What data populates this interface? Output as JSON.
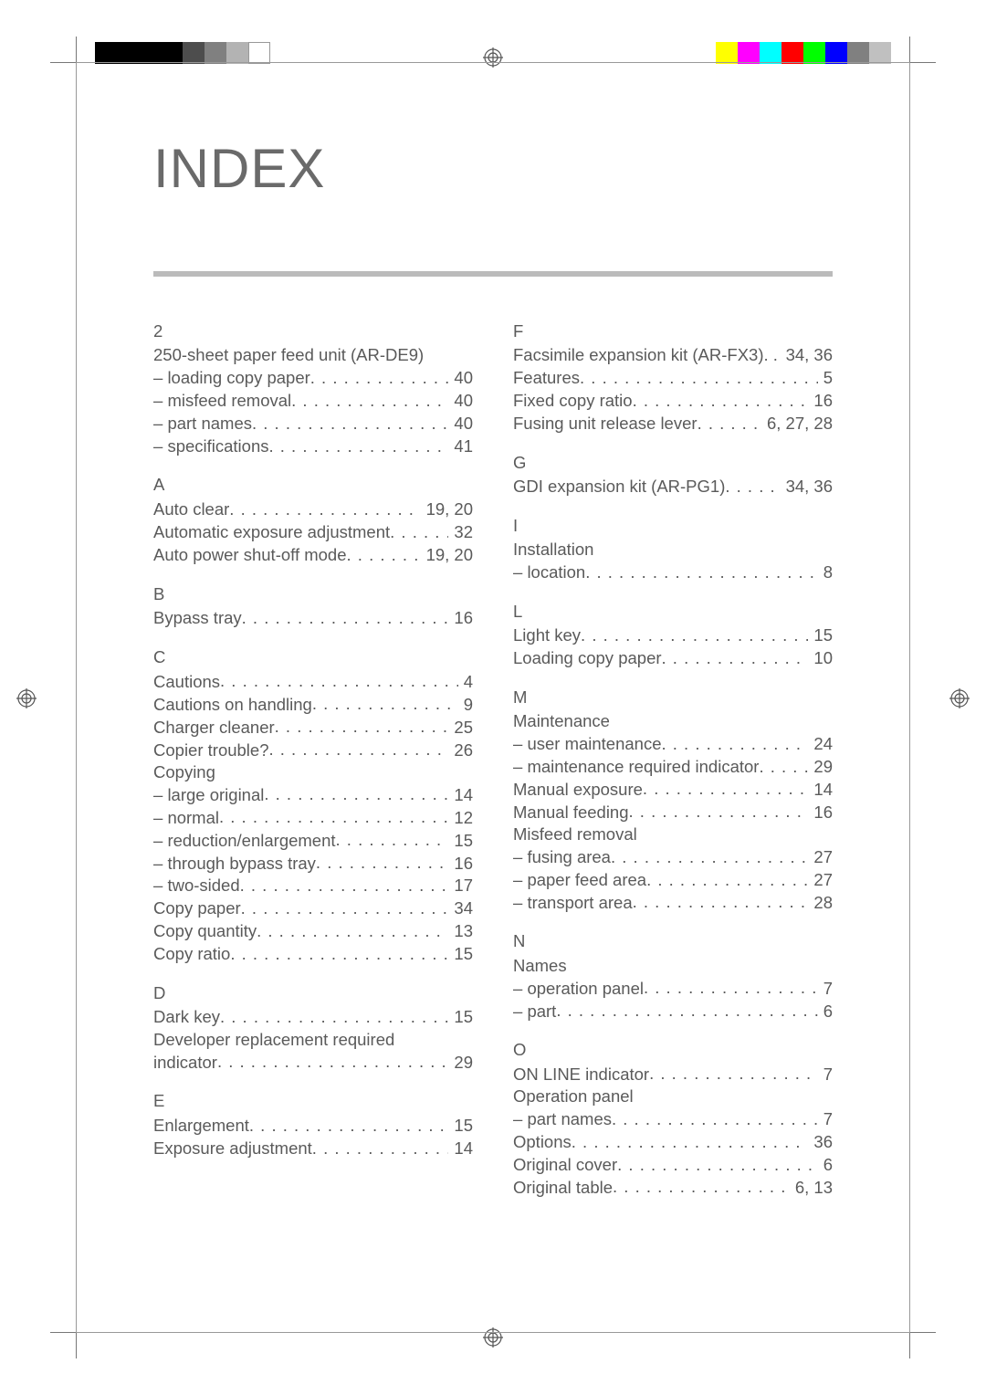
{
  "title": "INDEX",
  "printmarks": {
    "color_bar_left": [
      "#000000",
      "#000000",
      "#000000",
      "#000000",
      "#4d4d4d",
      "#808080",
      "#b3b3b3",
      "#ffffff"
    ],
    "color_bar_right": [
      "#ffff00",
      "#ff00ff",
      "#00ffff",
      "#ff0000",
      "#00ff00",
      "#0000ff",
      "#808080",
      "#c0c0c0"
    ]
  },
  "left": [
    {
      "letter": "2",
      "items": [
        {
          "text": "250-sheet paper feed unit (AR-DE9)",
          "page": "",
          "heading": true
        },
        {
          "text": "loading copy paper",
          "page": "40",
          "sub": true
        },
        {
          "text": "misfeed removal",
          "page": "40",
          "sub": true
        },
        {
          "text": "part names",
          "page": "40",
          "sub": true
        },
        {
          "text": "specifications",
          "page": "41",
          "sub": true
        }
      ]
    },
    {
      "letter": "A",
      "items": [
        {
          "text": "Auto clear",
          "page": "19, 20"
        },
        {
          "text": "Automatic exposure adjustment",
          "page": "32"
        },
        {
          "text": "Auto power shut-off mode",
          "page": "19, 20"
        }
      ]
    },
    {
      "letter": "B",
      "items": [
        {
          "text": "Bypass tray",
          "page": "16"
        }
      ]
    },
    {
      "letter": "C",
      "items": [
        {
          "text": "Cautions",
          "page": "4"
        },
        {
          "text": "Cautions on handling",
          "page": "9"
        },
        {
          "text": "Charger cleaner",
          "page": "25"
        },
        {
          "text": "Copier trouble?",
          "page": "26"
        },
        {
          "text": "Copying",
          "page": "",
          "heading": true
        },
        {
          "text": "large original",
          "page": "14",
          "sub": true
        },
        {
          "text": "normal",
          "page": "12",
          "sub": true
        },
        {
          "text": "reduction/enlargement",
          "page": "15",
          "sub": true
        },
        {
          "text": "through bypass tray",
          "page": "16",
          "sub": true
        },
        {
          "text": "two-sided",
          "page": "17",
          "sub": true
        },
        {
          "text": "Copy paper",
          "page": "34"
        },
        {
          "text": "Copy quantity",
          "page": "13"
        },
        {
          "text": "Copy ratio",
          "page": "15"
        }
      ]
    },
    {
      "letter": "D",
      "items": [
        {
          "text": "Dark key",
          "page": "15"
        },
        {
          "text": "Developer replacement required indicator",
          "page": "29",
          "wrap": true
        }
      ]
    },
    {
      "letter": "E",
      "items": [
        {
          "text": "Enlargement",
          "page": "15"
        },
        {
          "text": "Exposure adjustment",
          "page": "14"
        }
      ]
    }
  ],
  "right": [
    {
      "letter": "F",
      "items": [
        {
          "text": "Facsimile expansion kit (AR-FX3)",
          "page": "34, 36",
          "nodots": true
        },
        {
          "text": "Features",
          "page": "5"
        },
        {
          "text": "Fixed copy ratio",
          "page": "16"
        },
        {
          "text": "Fusing unit release lever",
          "page": "6, 27, 28"
        }
      ]
    },
    {
      "letter": "G",
      "items": [
        {
          "text": "GDI expansion kit (AR-PG1)",
          "page": "34, 36"
        }
      ]
    },
    {
      "letter": "I",
      "items": [
        {
          "text": "Installation",
          "page": "",
          "heading": true
        },
        {
          "text": "location",
          "page": "8",
          "sub": true
        }
      ]
    },
    {
      "letter": "L",
      "items": [
        {
          "text": "Light key",
          "page": "15"
        },
        {
          "text": "Loading copy paper",
          "page": "10"
        }
      ]
    },
    {
      "letter": "M",
      "items": [
        {
          "text": "Maintenance",
          "page": "",
          "heading": true
        },
        {
          "text": "user maintenance",
          "page": "24",
          "sub": true
        },
        {
          "text": "maintenance required indicator",
          "page": "29",
          "sub": true
        },
        {
          "text": "Manual exposure",
          "page": "14"
        },
        {
          "text": "Manual feeding",
          "page": "16"
        },
        {
          "text": "Misfeed removal",
          "page": "",
          "heading": true
        },
        {
          "text": "fusing area",
          "page": "27",
          "sub": true
        },
        {
          "text": "paper feed area",
          "page": "27",
          "sub": true
        },
        {
          "text": "transport area",
          "page": "28",
          "sub": true
        }
      ]
    },
    {
      "letter": "N",
      "items": [
        {
          "text": "Names",
          "page": "",
          "heading": true
        },
        {
          "text": "operation panel",
          "page": "7",
          "sub": true
        },
        {
          "text": "part",
          "page": "6",
          "sub": true
        }
      ]
    },
    {
      "letter": "O",
      "items": [
        {
          "text": "ON LINE indicator",
          "page": "7"
        },
        {
          "text": "Operation panel",
          "page": "",
          "heading": true
        },
        {
          "text": "part names",
          "page": "7",
          "sub": true
        },
        {
          "text": "Options",
          "page": "36"
        },
        {
          "text": "Original cover",
          "page": "6"
        },
        {
          "text": "Original table",
          "page": "6, 13"
        }
      ]
    }
  ]
}
